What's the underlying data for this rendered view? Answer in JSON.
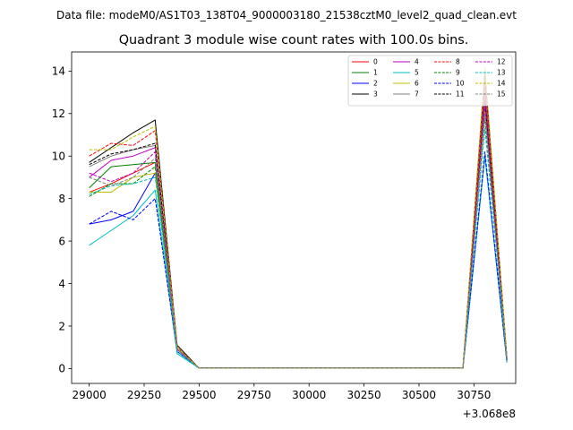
{
  "suptitle": "Data file: modeM0/AS1T03_138T04_9000003180_21538cztM0_level2_quad_clean.evt",
  "chart_data": {
    "type": "line",
    "title": "Quadrant 3 module wise count rates with 100.0s bins.",
    "xlabel": "",
    "ylabel": "",
    "x_offset_label": "+3.068e8",
    "xlim": [
      28920,
      30940
    ],
    "ylim": [
      -0.7,
      14.9
    ],
    "xticks": [
      29000,
      29250,
      29500,
      29750,
      30000,
      30250,
      30500,
      30750
    ],
    "yticks": [
      0,
      2,
      4,
      6,
      8,
      10,
      12,
      14
    ],
    "grid": false,
    "legend_position": "top-right",
    "legend_columns": 4,
    "x": [
      29000,
      29100,
      29200,
      29300,
      29400,
      29500,
      29600,
      29700,
      29800,
      29900,
      30000,
      30100,
      30200,
      30300,
      30400,
      30500,
      30600,
      30700,
      30800,
      30900
    ],
    "series": [
      {
        "name": "0",
        "color": "#ff0000",
        "dash": "solid",
        "values": [
          8.3,
          8.7,
          9.2,
          9.7,
          0.9,
          0.02,
          0.02,
          0.02,
          0.02,
          0.02,
          0.02,
          0.02,
          0.02,
          0.02,
          0.02,
          0.02,
          0.02,
          0.02,
          12.8,
          0.4
        ]
      },
      {
        "name": "1",
        "color": "#008000",
        "dash": "solid",
        "values": [
          8.5,
          9.5,
          9.6,
          9.7,
          0.9,
          0.02,
          0.02,
          0.02,
          0.02,
          0.02,
          0.02,
          0.02,
          0.02,
          0.02,
          0.02,
          0.02,
          0.02,
          0.02,
          12.5,
          0.4
        ]
      },
      {
        "name": "2",
        "color": "#0000ff",
        "dash": "solid",
        "values": [
          6.8,
          7.0,
          7.4,
          9.2,
          0.8,
          0.02,
          0.02,
          0.02,
          0.02,
          0.02,
          0.02,
          0.02,
          0.02,
          0.02,
          0.02,
          0.02,
          0.02,
          0.02,
          10.0,
          0.3
        ]
      },
      {
        "name": "3",
        "color": "#000000",
        "dash": "solid",
        "values": [
          9.7,
          10.4,
          11.1,
          11.7,
          1.1,
          0.02,
          0.02,
          0.02,
          0.02,
          0.02,
          0.02,
          0.02,
          0.02,
          0.02,
          0.02,
          0.02,
          0.02,
          0.02,
          13.9,
          0.5
        ]
      },
      {
        "name": "4",
        "color": "#bf00bf",
        "dash": "solid",
        "values": [
          9.0,
          9.8,
          10.0,
          10.4,
          0.9,
          0.02,
          0.02,
          0.02,
          0.02,
          0.02,
          0.02,
          0.02,
          0.02,
          0.02,
          0.02,
          0.02,
          0.02,
          0.02,
          13.0,
          0.4
        ]
      },
      {
        "name": "5",
        "color": "#00bfbf",
        "dash": "solid",
        "values": [
          5.8,
          6.5,
          7.2,
          8.4,
          0.7,
          0.02,
          0.02,
          0.02,
          0.02,
          0.02,
          0.02,
          0.02,
          0.02,
          0.02,
          0.02,
          0.02,
          0.02,
          0.02,
          10.0,
          0.3
        ]
      },
      {
        "name": "6",
        "color": "#bfbf00",
        "dash": "solid",
        "values": [
          8.3,
          8.3,
          9.0,
          9.2,
          0.9,
          0.02,
          0.02,
          0.02,
          0.02,
          0.02,
          0.02,
          0.02,
          0.02,
          0.02,
          0.02,
          0.02,
          0.02,
          0.02,
          12.3,
          0.4
        ]
      },
      {
        "name": "7",
        "color": "#808080",
        "dash": "solid",
        "values": [
          9.5,
          10.0,
          10.3,
          10.5,
          1.0,
          0.02,
          0.02,
          0.02,
          0.02,
          0.02,
          0.02,
          0.02,
          0.02,
          0.02,
          0.02,
          0.02,
          0.02,
          0.02,
          13.4,
          0.4
        ]
      },
      {
        "name": "8",
        "color": "#ff0000",
        "dash": "dashed",
        "values": [
          10.0,
          10.6,
          10.5,
          11.2,
          1.0,
          0.02,
          0.02,
          0.02,
          0.02,
          0.02,
          0.02,
          0.02,
          0.02,
          0.02,
          0.02,
          0.02,
          0.02,
          0.02,
          13.5,
          0.5
        ]
      },
      {
        "name": "9",
        "color": "#008000",
        "dash": "dashed",
        "values": [
          8.1,
          8.7,
          8.7,
          9.5,
          0.9,
          0.02,
          0.02,
          0.02,
          0.02,
          0.02,
          0.02,
          0.02,
          0.02,
          0.02,
          0.02,
          0.02,
          0.02,
          0.02,
          11.8,
          0.4
        ]
      },
      {
        "name": "10",
        "color": "#0000ff",
        "dash": "dashed",
        "values": [
          6.8,
          7.4,
          7.0,
          8.0,
          0.8,
          0.02,
          0.02,
          0.02,
          0.02,
          0.02,
          0.02,
          0.02,
          0.02,
          0.02,
          0.02,
          0.02,
          0.02,
          0.02,
          10.2,
          0.3
        ]
      },
      {
        "name": "11",
        "color": "#000000",
        "dash": "dashed",
        "values": [
          9.6,
          10.1,
          10.3,
          10.6,
          1.0,
          0.02,
          0.02,
          0.02,
          0.02,
          0.02,
          0.02,
          0.02,
          0.02,
          0.02,
          0.02,
          0.02,
          0.02,
          0.02,
          12.6,
          0.4
        ]
      },
      {
        "name": "12",
        "color": "#bf00bf",
        "dash": "dashed",
        "values": [
          9.2,
          8.8,
          9.2,
          10.2,
          0.9,
          0.02,
          0.02,
          0.02,
          0.02,
          0.02,
          0.02,
          0.02,
          0.02,
          0.02,
          0.02,
          0.02,
          0.02,
          0.02,
          12.4,
          0.4
        ]
      },
      {
        "name": "13",
        "color": "#00bfbf",
        "dash": "dashed",
        "values": [
          8.2,
          8.6,
          8.7,
          9.0,
          0.8,
          0.02,
          0.02,
          0.02,
          0.02,
          0.02,
          0.02,
          0.02,
          0.02,
          0.02,
          0.02,
          0.02,
          0.02,
          0.02,
          11.3,
          0.4
        ]
      },
      {
        "name": "14",
        "color": "#bfbf00",
        "dash": "dashed",
        "values": [
          10.3,
          10.3,
          10.9,
          11.4,
          1.0,
          0.02,
          0.02,
          0.02,
          0.02,
          0.02,
          0.02,
          0.02,
          0.02,
          0.02,
          0.02,
          0.02,
          0.02,
          0.02,
          14.2,
          0.5
        ]
      },
      {
        "name": "15",
        "color": "#808080",
        "dash": "dashed",
        "values": [
          9.0,
          8.6,
          9.0,
          9.9,
          0.9,
          0.02,
          0.02,
          0.02,
          0.02,
          0.02,
          0.02,
          0.02,
          0.02,
          0.02,
          0.02,
          0.02,
          0.02,
          0.02,
          12.0,
          0.4
        ]
      }
    ]
  }
}
